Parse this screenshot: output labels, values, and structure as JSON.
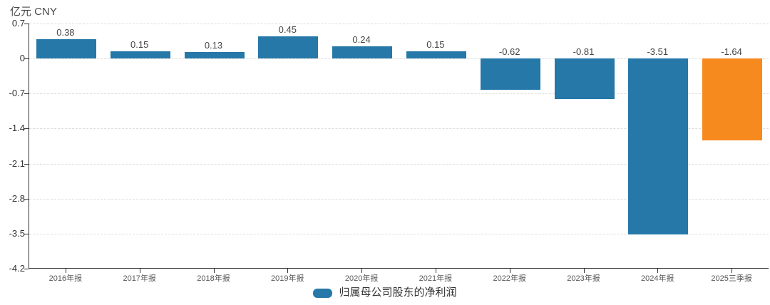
{
  "header": {
    "unit_label": "亿元 CNY"
  },
  "chart_data": {
    "type": "bar",
    "categories": [
      "2016年报",
      "2017年报",
      "2018年报",
      "2019年报",
      "2020年报",
      "2021年报",
      "2022年报",
      "2023年报",
      "2024年报",
      "2025三季报"
    ],
    "values": [
      0.38,
      0.15,
      0.13,
      0.45,
      0.24,
      0.15,
      -0.62,
      -0.81,
      -3.51,
      -1.64
    ],
    "value_labels": [
      "0.38",
      "0.15",
      "0.13",
      "0.45",
      "0.24",
      "0.15",
      "-0.62",
      "-0.81",
      "-3.51",
      "-1.64"
    ],
    "bar_colors": [
      "#2578a8",
      "#2578a8",
      "#2578a8",
      "#2578a8",
      "#2578a8",
      "#2578a8",
      "#2578a8",
      "#2578a8",
      "#2578a8",
      "#f78a1e"
    ],
    "title": "",
    "xlabel": "",
    "ylabel": "亿元 CNY",
    "ylim": [
      -4.2,
      0.7
    ],
    "yticks": [
      0.7,
      0,
      -0.7,
      -1.4,
      -2.1,
      -2.8,
      -3.5,
      -4.2
    ],
    "ytick_labels": [
      "0.7",
      "0",
      "-0.7",
      "-1.4",
      "-2.1",
      "-2.8",
      "-3.5",
      "-4.2"
    ],
    "grid": "dashed-horizontal",
    "legend_position": "bottom-center",
    "legend": [
      {
        "label": "归属母公司股东的净利润",
        "color": "#2578a8"
      }
    ]
  },
  "colors": {
    "series_blue": "#2578a8",
    "highlight_orange": "#f78a1e",
    "grid": "#dddddd",
    "axis": "#333333",
    "background": "#ffffff"
  }
}
